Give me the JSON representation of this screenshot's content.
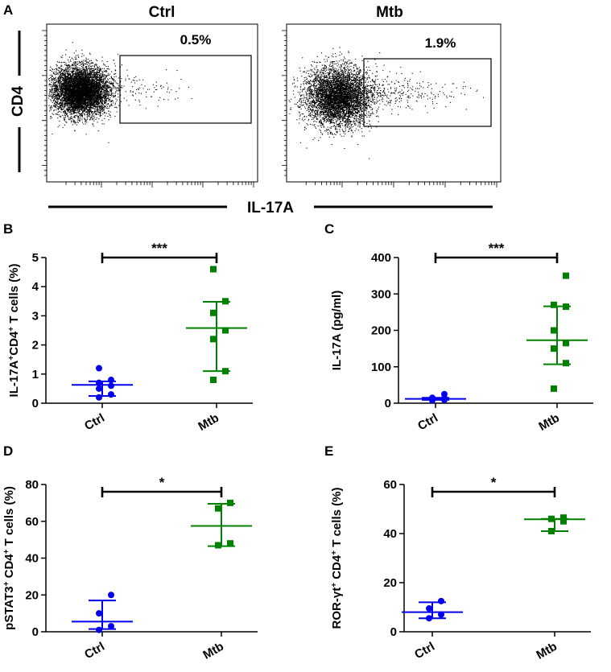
{
  "panel_a": {
    "letter": "A",
    "x_axis_label": "IL-17A",
    "y_axis_label": "CD4",
    "plots": [
      {
        "title": "Ctrl",
        "gate_percent": "0.5%"
      },
      {
        "title": "Mtb",
        "gate_percent": "1.9%"
      }
    ]
  },
  "chart_data": [
    {
      "panel": "B",
      "type": "scatter",
      "ylabel_main": "IL-17A",
      "ylabel_sup1": "+",
      "ylabel_mid": "CD4",
      "ylabel_sup2": "+",
      "ylabel_end": " T cells (%)",
      "categories": [
        "Ctrl",
        "Mtb"
      ],
      "ylim": [
        0,
        5
      ],
      "yticks": [
        0,
        1,
        2,
        3,
        4,
        5
      ],
      "significance": "***",
      "series": [
        {
          "name": "Ctrl",
          "color": "#0000ee",
          "marker": "circle",
          "values": [
            0.2,
            0.3,
            0.5,
            0.6,
            0.7,
            0.8,
            1.2
          ],
          "mean": 0.63,
          "sd_low": 0.25,
          "sd_high": 0.75
        },
        {
          "name": "Mtb",
          "color": "#008000",
          "marker": "square",
          "values": [
            0.8,
            1.1,
            2.2,
            2.5,
            3.1,
            3.5,
            4.6
          ],
          "mean": 2.58,
          "sd_low": 1.1,
          "sd_high": 3.48
        }
      ]
    },
    {
      "panel": "C",
      "type": "scatter",
      "ylabel": "IL-17A (pg/ml)",
      "categories": [
        "Ctrl",
        "Mtb"
      ],
      "ylim": [
        0,
        400
      ],
      "yticks": [
        0,
        100,
        200,
        300,
        400
      ],
      "significance": "***",
      "series": [
        {
          "name": "Ctrl",
          "color": "#0000ee",
          "marker": "circle",
          "values": [
            8,
            9,
            10,
            11,
            12,
            14,
            15,
            25
          ],
          "mean": 12,
          "sd_low": 9,
          "sd_high": 15
        },
        {
          "name": "Mtb",
          "color": "#008000",
          "marker": "square",
          "values": [
            40,
            110,
            150,
            165,
            200,
            265,
            270,
            350
          ],
          "mean": 173,
          "sd_low": 107,
          "sd_high": 266
        }
      ]
    },
    {
      "panel": "D",
      "type": "scatter",
      "ylabel_main": "pSTAT3",
      "ylabel_sup1": "+",
      "ylabel_mid": " CD4",
      "ylabel_sup2": "+",
      "ylabel_end": " T cells (%)",
      "categories": [
        "Ctrl",
        "Mtb"
      ],
      "ylim": [
        0,
        80
      ],
      "yticks": [
        0,
        20,
        40,
        60,
        80
      ],
      "significance": "*",
      "series": [
        {
          "name": "Ctrl",
          "color": "#0000ee",
          "marker": "circle",
          "values": [
            1,
            3,
            10,
            20
          ],
          "mean": 5.5,
          "sd_low": 1.5,
          "sd_high": 17
        },
        {
          "name": "Mtb",
          "color": "#008000",
          "marker": "square",
          "values": [
            47,
            48,
            67,
            70
          ],
          "mean": 57.5,
          "sd_low": 46.5,
          "sd_high": 69.5
        }
      ]
    },
    {
      "panel": "E",
      "type": "scatter",
      "ylabel_main": "ROR-γt",
      "ylabel_sup1": "+",
      "ylabel_mid": " CD4",
      "ylabel_sup2": "+",
      "ylabel_end": " T cells (%)",
      "categories": [
        "Ctrl",
        "Mtb"
      ],
      "ylim": [
        0,
        60
      ],
      "yticks": [
        0,
        20,
        40,
        60
      ],
      "significance": "*",
      "series": [
        {
          "name": "Ctrl",
          "color": "#0000ee",
          "marker": "circle",
          "values": [
            5.5,
            7,
            9.5,
            12.5
          ],
          "mean": 8,
          "sd_low": 5.5,
          "sd_high": 12
        },
        {
          "name": "Mtb",
          "color": "#008000",
          "marker": "square",
          "values": [
            41,
            45,
            46,
            46.5
          ],
          "mean": 45.8,
          "sd_low": 41,
          "sd_high": 46
        }
      ]
    }
  ]
}
